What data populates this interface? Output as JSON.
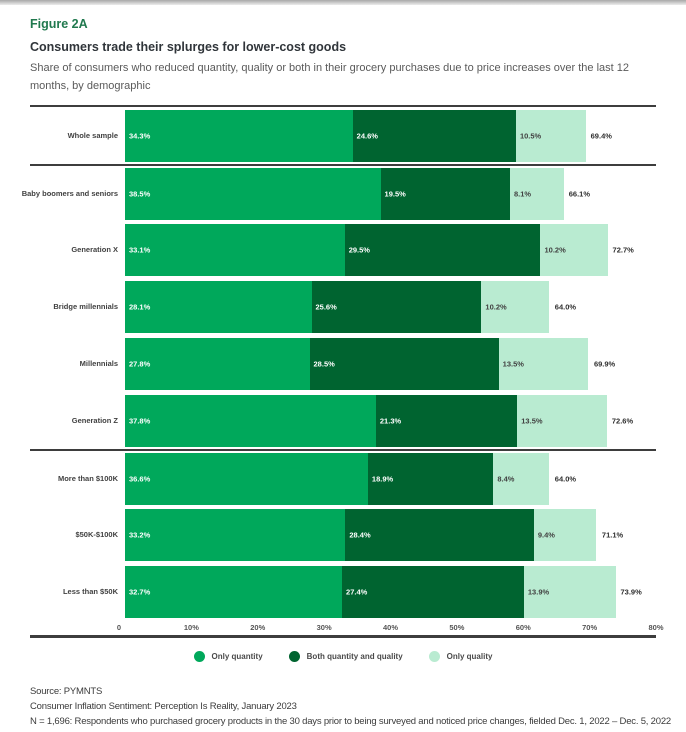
{
  "header": {
    "figure_label": "Figure 2A",
    "title": "Consumers trade their splurges for lower-cost goods",
    "description": "Share of consumers who reduced quantity, quality or both in their grocery purchases due to price increases over the last 12 months, by demographic"
  },
  "chart_data": {
    "type": "bar",
    "orientation": "horizontal",
    "stacked": true,
    "grid": false,
    "legend_position": "bottom",
    "xlim": [
      0,
      80
    ],
    "categories": [
      "Whole sample",
      "Baby boomers and seniors",
      "Generation X",
      "Bridge millennials",
      "Millennials",
      "Generation Z",
      "More than $100K",
      "$50K-$100K",
      "Less than $50K"
    ],
    "series": [
      {
        "name": "Only quantity",
        "color": "#00a85b",
        "values": [
          34.3,
          38.5,
          33.1,
          28.1,
          27.8,
          37.8,
          36.6,
          33.2,
          32.7
        ]
      },
      {
        "name": "Both quantity and quality",
        "color": "#006430",
        "values": [
          24.6,
          19.5,
          29.5,
          25.6,
          28.5,
          21.3,
          18.9,
          28.4,
          27.4
        ]
      },
      {
        "name": "Only quality",
        "color": "#b9ebd1",
        "values": [
          10.5,
          8.1,
          10.2,
          10.2,
          13.5,
          13.5,
          8.4,
          9.4,
          13.9
        ]
      }
    ],
    "totals": [
      69.4,
      66.1,
      72.7,
      64.0,
      69.9,
      72.6,
      64.0,
      71.1,
      73.9
    ],
    "separators_before_rows": [
      1,
      6
    ],
    "x_ticks": [
      {
        "label": "0",
        "value": 0
      },
      {
        "label": "10%",
        "value": 10
      },
      {
        "label": "20%",
        "value": 20
      },
      {
        "label": "30%",
        "value": 30
      },
      {
        "label": "40%",
        "value": 40
      },
      {
        "label": "50%",
        "value": 50
      },
      {
        "label": "60%",
        "value": 60
      },
      {
        "label": "70%",
        "value": 70
      },
      {
        "label": "80%",
        "value": 80
      }
    ]
  },
  "footer": {
    "source": "Source: PYMNTS",
    "report": "Consumer Inflation Sentiment: Perception Is Reality, January 2023",
    "note": "N = 1,696: Respondents who purchased grocery products in the 30 days prior to being surveyed and noticed price changes, fielded Dec. 1, 2022 – Dec. 5, 2022"
  }
}
